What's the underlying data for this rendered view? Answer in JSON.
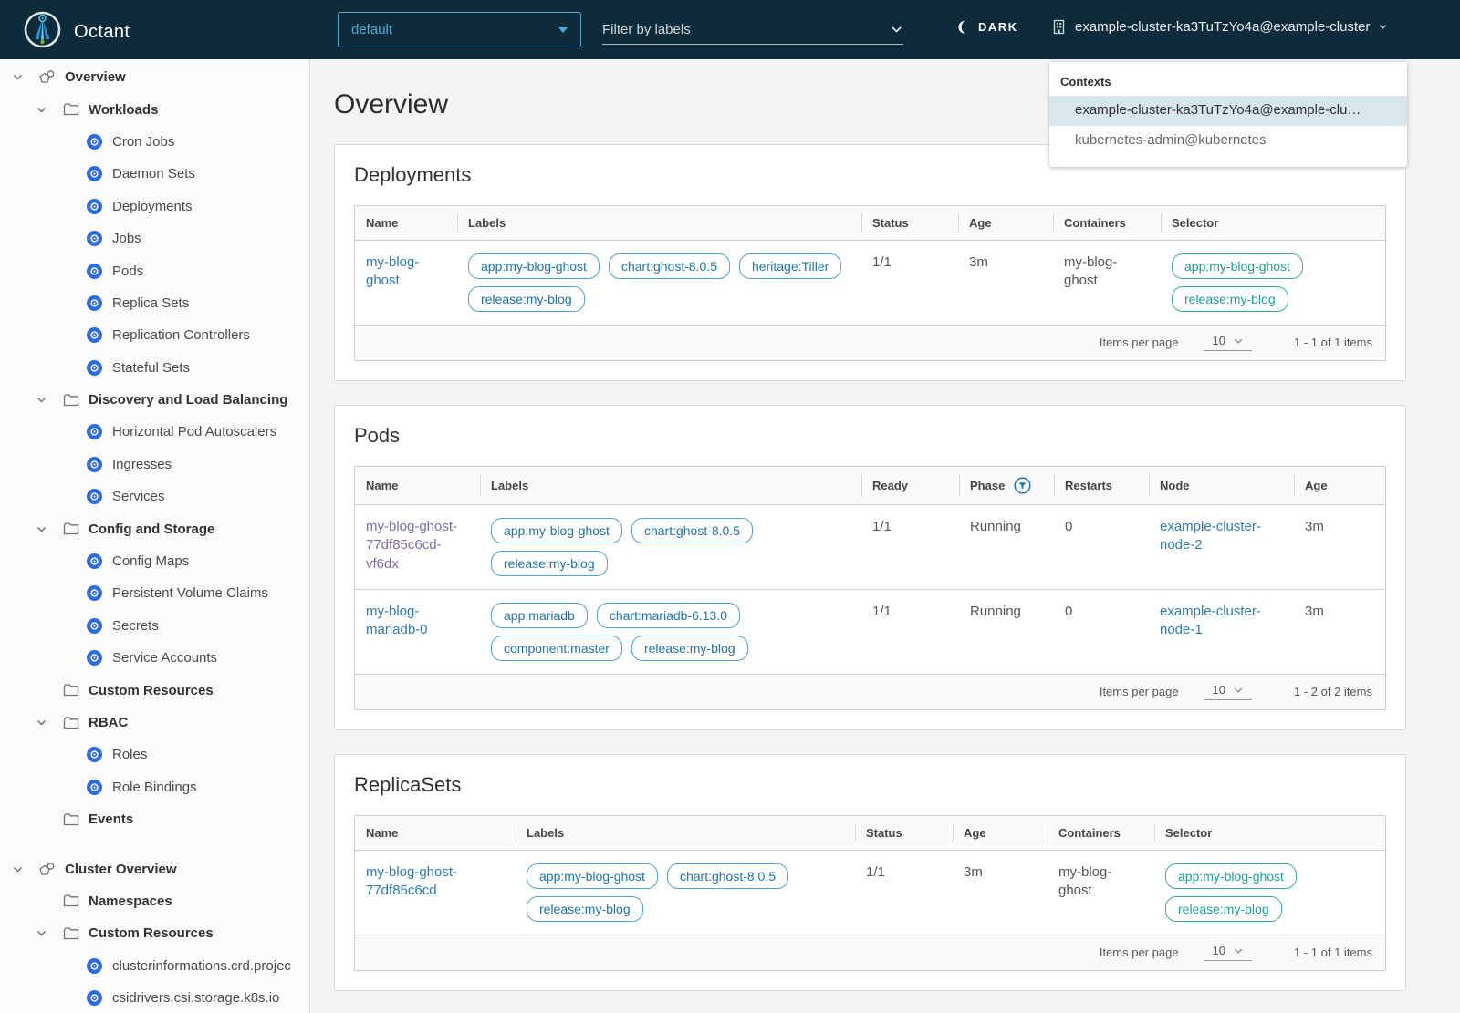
{
  "header": {
    "brand": "Octant",
    "namespace": {
      "value": "default"
    },
    "filter": {
      "placeholder": "Filter by labels"
    },
    "theme_toggle": {
      "label": "DARK"
    },
    "context_chip": {
      "label": "example-cluster-ka3TuTzYo4a@example-cluster"
    }
  },
  "context_menu": {
    "title": "Contexts",
    "items": [
      {
        "label": "example-cluster-ka3TuTzYo4a@example-clu…",
        "selected": true
      },
      {
        "label": "kubernetes-admin@kubernetes",
        "selected": false
      }
    ]
  },
  "sidebar": {
    "items": [
      {
        "label": "Overview",
        "kind": "section",
        "indent": 0,
        "caret": true,
        "icon": "objects-icon"
      },
      {
        "label": "Workloads",
        "kind": "group",
        "indent": 1,
        "caret": true,
        "icon": "folder-icon"
      },
      {
        "label": "Cron Jobs",
        "kind": "leaf",
        "indent": 2,
        "icon": "k8s-cronjob-icon"
      },
      {
        "label": "Daemon Sets",
        "kind": "leaf",
        "indent": 2,
        "icon": "k8s-daemonset-icon"
      },
      {
        "label": "Deployments",
        "kind": "leaf",
        "indent": 2,
        "icon": "k8s-deployment-icon"
      },
      {
        "label": "Jobs",
        "kind": "leaf",
        "indent": 2,
        "icon": "k8s-job-icon"
      },
      {
        "label": "Pods",
        "kind": "leaf",
        "indent": 2,
        "icon": "k8s-pod-icon"
      },
      {
        "label": "Replica Sets",
        "kind": "leaf",
        "indent": 2,
        "icon": "k8s-replicaset-icon"
      },
      {
        "label": "Replication Controllers",
        "kind": "leaf",
        "indent": 2,
        "icon": "k8s-replicationcontroller-icon"
      },
      {
        "label": "Stateful Sets",
        "kind": "leaf",
        "indent": 2,
        "icon": "k8s-statefulset-icon"
      },
      {
        "label": "Discovery and Load Balancing",
        "kind": "group",
        "indent": 1,
        "caret": true,
        "icon": "folder-icon"
      },
      {
        "label": "Horizontal Pod Autoscalers",
        "kind": "leaf",
        "indent": 2,
        "icon": "k8s-hpa-icon"
      },
      {
        "label": "Ingresses",
        "kind": "leaf",
        "indent": 2,
        "icon": "k8s-ingress-icon"
      },
      {
        "label": "Services",
        "kind": "leaf",
        "indent": 2,
        "icon": "k8s-service-icon"
      },
      {
        "label": "Config and Storage",
        "kind": "group",
        "indent": 1,
        "caret": true,
        "icon": "folder-icon"
      },
      {
        "label": "Config Maps",
        "kind": "leaf",
        "indent": 2,
        "icon": "k8s-configmap-icon"
      },
      {
        "label": "Persistent Volume Claims",
        "kind": "leaf",
        "indent": 2,
        "icon": "k8s-pvc-icon"
      },
      {
        "label": "Secrets",
        "kind": "leaf",
        "indent": 2,
        "icon": "k8s-secret-icon"
      },
      {
        "label": "Service Accounts",
        "kind": "leaf",
        "indent": 2,
        "icon": "k8s-serviceaccount-icon"
      },
      {
        "label": "Custom Resources",
        "kind": "group",
        "indent": 1,
        "caret": false,
        "icon": "folder-icon"
      },
      {
        "label": "RBAC",
        "kind": "group",
        "indent": 1,
        "caret": true,
        "icon": "folder-icon"
      },
      {
        "label": "Roles",
        "kind": "leaf",
        "indent": 2,
        "icon": "k8s-role-icon"
      },
      {
        "label": "Role Bindings",
        "kind": "leaf",
        "indent": 2,
        "icon": "k8s-rolebinding-icon"
      },
      {
        "label": "Events",
        "kind": "group",
        "indent": 1,
        "caret": false,
        "icon": "folder-icon"
      },
      {
        "label": "Cluster Overview",
        "kind": "section",
        "indent": 0,
        "caret": true,
        "icon": "objects-icon",
        "gap_before": true
      },
      {
        "label": "Namespaces",
        "kind": "group",
        "indent": 1,
        "caret": false,
        "icon": "folder-icon"
      },
      {
        "label": "Custom Resources",
        "kind": "group",
        "indent": 1,
        "caret": true,
        "icon": "folder-icon"
      },
      {
        "label": "clusterinformations.crd.projec",
        "kind": "leaf",
        "indent": 2,
        "icon": "k8s-crd-icon"
      },
      {
        "label": "csidrivers.csi.storage.k8s.io",
        "kind": "leaf",
        "indent": 2,
        "icon": "k8s-crd-icon"
      }
    ]
  },
  "main": {
    "title": "Overview",
    "cards": [
      {
        "title": "Deployments",
        "columns": [
          {
            "label": "Name"
          },
          {
            "label": "Labels"
          },
          {
            "label": "Status"
          },
          {
            "label": "Age"
          },
          {
            "label": "Containers"
          },
          {
            "label": "Selector"
          }
        ],
        "rows": [
          {
            "cells": [
              {
                "text": "my-blog-ghost",
                "variant": "link"
              },
              {
                "tags": [
                  "app:my-blog-ghost",
                  "chart:ghost-8.0.5",
                  "heritage:Tiller",
                  "release:my-blog"
                ],
                "tag_color": "blue"
              },
              {
                "text": "1/1"
              },
              {
                "text": "3m"
              },
              {
                "text": "my-blog-ghost"
              },
              {
                "tags": [
                  "app:my-blog-ghost",
                  "release:my-blog"
                ],
                "tag_color": "teal"
              }
            ]
          }
        ],
        "footer": {
          "items_per_page_label": "Items per page",
          "page_size": "10",
          "range": "1 - 1 of 1 items"
        }
      },
      {
        "title": "Pods",
        "columns": [
          {
            "label": "Name"
          },
          {
            "label": "Labels"
          },
          {
            "label": "Ready"
          },
          {
            "label": "Phase",
            "filter_icon": true
          },
          {
            "label": "Restarts"
          },
          {
            "label": "Node"
          },
          {
            "label": "Age"
          }
        ],
        "rows": [
          {
            "cells": [
              {
                "text": "my-blog-ghost-77df85c6cd-vf6dx",
                "variant": "visited-link"
              },
              {
                "tags": [
                  "app:my-blog-ghost",
                  "chart:ghost-8.0.5",
                  "release:my-blog"
                ],
                "tag_color": "blue"
              },
              {
                "text": "1/1"
              },
              {
                "text": "Running"
              },
              {
                "text": "0"
              },
              {
                "text": "example-cluster-node-2",
                "variant": "link"
              },
              {
                "text": "3m"
              }
            ]
          },
          {
            "cells": [
              {
                "text": "my-blog-mariadb-0",
                "variant": "link"
              },
              {
                "tags": [
                  "app:mariadb",
                  "chart:mariadb-6.13.0",
                  "component:master",
                  "release:my-blog"
                ],
                "tag_color": "blue"
              },
              {
                "text": "1/1"
              },
              {
                "text": "Running"
              },
              {
                "text": "0"
              },
              {
                "text": "example-cluster-node-1",
                "variant": "link"
              },
              {
                "text": "3m"
              }
            ]
          }
        ],
        "footer": {
          "items_per_page_label": "Items per page",
          "page_size": "10",
          "range": "1 - 2 of 2 items"
        }
      },
      {
        "title": "ReplicaSets",
        "columns": [
          {
            "label": "Name"
          },
          {
            "label": "Labels"
          },
          {
            "label": "Status"
          },
          {
            "label": "Age"
          },
          {
            "label": "Containers"
          },
          {
            "label": "Selector"
          }
        ],
        "rows": [
          {
            "cells": [
              {
                "text": "my-blog-ghost-77df85c6cd",
                "variant": "link"
              },
              {
                "tags": [
                  "app:my-blog-ghost",
                  "chart:ghost-8.0.5",
                  "release:my-blog"
                ],
                "tag_color": "blue"
              },
              {
                "text": "1/1"
              },
              {
                "text": "3m"
              },
              {
                "text": "my-blog-ghost"
              },
              {
                "tags": [
                  "app:my-blog-ghost",
                  "release:my-blog"
                ],
                "tag_color": "teal"
              }
            ]
          }
        ],
        "footer": {
          "items_per_page_label": "Items per page",
          "page_size": "10",
          "range": "1 - 1 of 1 items"
        }
      }
    ]
  },
  "colors": {
    "navbar_bg": "#0d2b3a",
    "accent_blue": "#49afd9",
    "link_blue": "#2e7bb8",
    "visited_link_purple": "#7e6bae",
    "tag_blue": "#1d74ae",
    "tag_teal": "#1fa093",
    "k8s_icon_blue": "#2d6ce0",
    "selected_context_bg": "#d8e7ee"
  }
}
